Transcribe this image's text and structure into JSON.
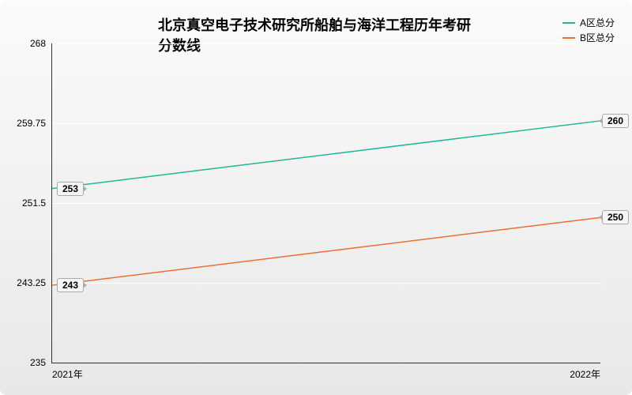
{
  "chart": {
    "type": "line",
    "title": "北京真空电子技术研究所船舶与海洋工程历年考研分数线",
    "title_fontsize": 18,
    "title_color": "#000000",
    "background_gradient_top": "#fbfbfb",
    "background_gradient_bottom": "#e8e8e8",
    "axis_color": "#333333",
    "grid_color": "#ffffff",
    "tick_label_fontsize": 12,
    "tick_label_color": "#000000",
    "y_axis": {
      "min": 235,
      "max": 268,
      "ticks": [
        235,
        243.25,
        251.5,
        259.75,
        268
      ],
      "labels": [
        "235",
        "243.25",
        "251.5",
        "259.75",
        "268"
      ]
    },
    "x_axis": {
      "categories": [
        "2021年",
        "2022年"
      ],
      "positions": [
        0,
        1
      ]
    },
    "series": [
      {
        "name": "A区总分",
        "color": "#1fb898",
        "line_width": 1.5,
        "values": [
          253,
          260
        ],
        "labels": [
          "253",
          "260"
        ]
      },
      {
        "name": "B区总分",
        "color": "#e9702e",
        "line_width": 1.5,
        "values": [
          243,
          250
        ],
        "labels": [
          "243",
          "250"
        ]
      }
    ],
    "legend": {
      "position": "top-right",
      "fontsize": 12
    },
    "point_label": {
      "fontsize": 12,
      "bg": "#f5f5f5",
      "border": "#aaaaaa"
    }
  }
}
